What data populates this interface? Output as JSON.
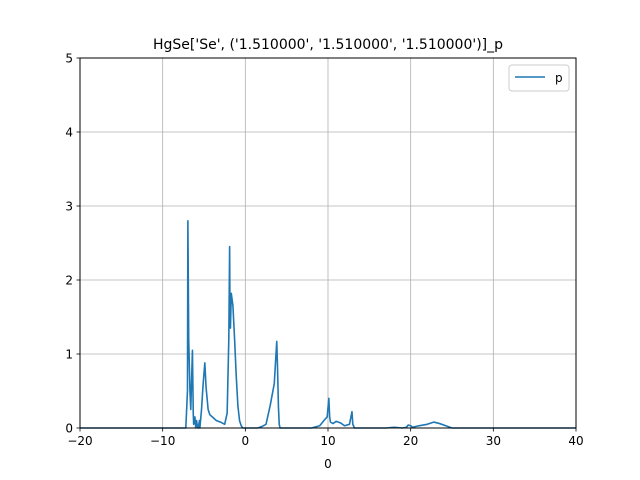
{
  "chart_data": {
    "type": "line",
    "title": "HgSe['Se', ('1.510000', '1.510000', '1.510000')]_p",
    "xlabel": "0",
    "ylabel": "",
    "xlim": [
      -20,
      40
    ],
    "ylim": [
      0,
      5
    ],
    "xticks": [
      -20,
      -10,
      0,
      10,
      20,
      30,
      40
    ],
    "yticks": [
      0,
      1,
      2,
      3,
      4,
      5
    ],
    "xtick_labels": [
      "−20",
      "−10",
      "0",
      "10",
      "20",
      "30",
      "40"
    ],
    "ytick_labels": [
      "0",
      "1",
      "2",
      "3",
      "4",
      "5"
    ],
    "grid": true,
    "legend": {
      "position": "top-right",
      "entries": [
        "p"
      ]
    },
    "colors": {
      "series": "#1f77b4",
      "grid": "#b0b0b0",
      "axes": "#000000"
    },
    "series": [
      {
        "name": "p",
        "x": [
          -20,
          -7.2,
          -7.0,
          -6.95,
          -6.85,
          -6.7,
          -6.6,
          -6.4,
          -6.3,
          -6.25,
          -6.1,
          -6.0,
          -5.9,
          -5.8,
          -5.7,
          -5.55,
          -5.5,
          -5.3,
          -5.1,
          -4.9,
          -4.75,
          -4.5,
          -4.3,
          -4.0,
          -3.5,
          -3.0,
          -2.5,
          -2.2,
          -2.0,
          -1.9,
          -1.85,
          -1.8,
          -1.7,
          -1.5,
          -1.3,
          -1.1,
          -0.9,
          -0.7,
          -0.5,
          -0.3,
          -0.2,
          0,
          0.5,
          1.0,
          1.5,
          2.0,
          2.5,
          3.0,
          3.5,
          3.8,
          3.9,
          4.0,
          4.1,
          4.2,
          4.3,
          4.5,
          5.0,
          6.0,
          7.0,
          8.0,
          9.0,
          9.5,
          9.9,
          10.1,
          10.2,
          10.3,
          10.6,
          11.0,
          11.5,
          12.0,
          12.6,
          12.9,
          13.0,
          13.2,
          13.5,
          15,
          17,
          18,
          19,
          19.5,
          19.7,
          20.0,
          20.2,
          21,
          22,
          22.8,
          23.5,
          24.5,
          25,
          27,
          30,
          40
        ],
        "y": [
          0,
          0,
          0.5,
          2.8,
          1.2,
          0.5,
          0.25,
          1.05,
          0.2,
          0.05,
          0.15,
          0.0,
          0.1,
          0.02,
          0.0,
          0.1,
          0.0,
          0.25,
          0.6,
          0.88,
          0.55,
          0.25,
          0.18,
          0.15,
          0.1,
          0.08,
          0.05,
          0.2,
          1.2,
          2.45,
          1.4,
          1.35,
          1.82,
          1.65,
          1.2,
          0.7,
          0.3,
          0.1,
          0.03,
          0.0,
          0.0,
          0.0,
          0.0,
          0.0,
          0.0,
          0.02,
          0.05,
          0.3,
          0.6,
          1.17,
          0.8,
          0.3,
          0.05,
          0.0,
          0.0,
          0.0,
          0.0,
          0.0,
          0.0,
          0.0,
          0.03,
          0.1,
          0.15,
          0.4,
          0.15,
          0.08,
          0.06,
          0.09,
          0.07,
          0.03,
          0.05,
          0.22,
          0.05,
          0.0,
          0.0,
          0.0,
          0.0,
          0.01,
          0.0,
          0.01,
          0.04,
          0.03,
          0.01,
          0.03,
          0.05,
          0.08,
          0.06,
          0.02,
          0.0,
          0.0,
          0.0,
          0.0
        ]
      }
    ]
  }
}
